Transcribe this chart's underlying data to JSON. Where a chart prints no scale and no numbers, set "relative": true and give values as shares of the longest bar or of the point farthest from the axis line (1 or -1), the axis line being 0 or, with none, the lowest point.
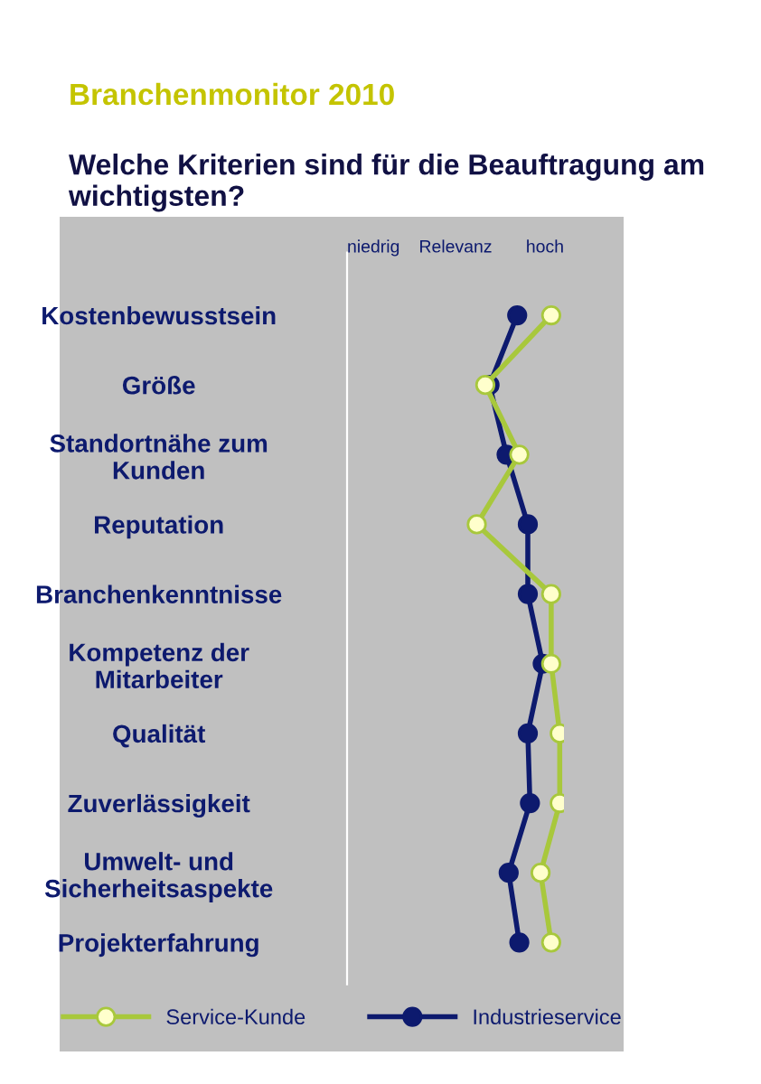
{
  "chart_data": {
    "type": "line",
    "orientation": "horizontal",
    "relative": true,
    "title": "Branchenmonitor 2010",
    "subtitle": "Welche Kriterien sind für die Beauftragung am wichtigsten?",
    "categories": [
      "Kostenbewusstsein",
      "Größe",
      "Standortnähe zum\nKunden",
      "Reputation",
      "Branchenkenntnisse",
      "Kompetenz der\nMitarbeiter",
      "Qualität",
      "Zuverlässigkeit",
      "Umwelt- und\nSicherheitsaspekte",
      "Projekterfahrung"
    ],
    "series": [
      {
        "name": "Service-Kunde",
        "color": "#a8c83c",
        "values": [
          0.96,
          0.65,
          0.81,
          0.61,
          0.96,
          0.96,
          1.0,
          1.0,
          0.91,
          0.96
        ]
      },
      {
        "name": "Industrieservice",
        "color": "#0d1a6e",
        "values": [
          0.8,
          0.67,
          0.75,
          0.85,
          0.85,
          0.92,
          0.85,
          0.86,
          0.76,
          0.81
        ]
      }
    ],
    "annotations": [
      "niedrig",
      "Relevanz",
      "hoch"
    ],
    "marker": "circle",
    "line_style": "solid",
    "legend": "bottom",
    "grid": false
  }
}
